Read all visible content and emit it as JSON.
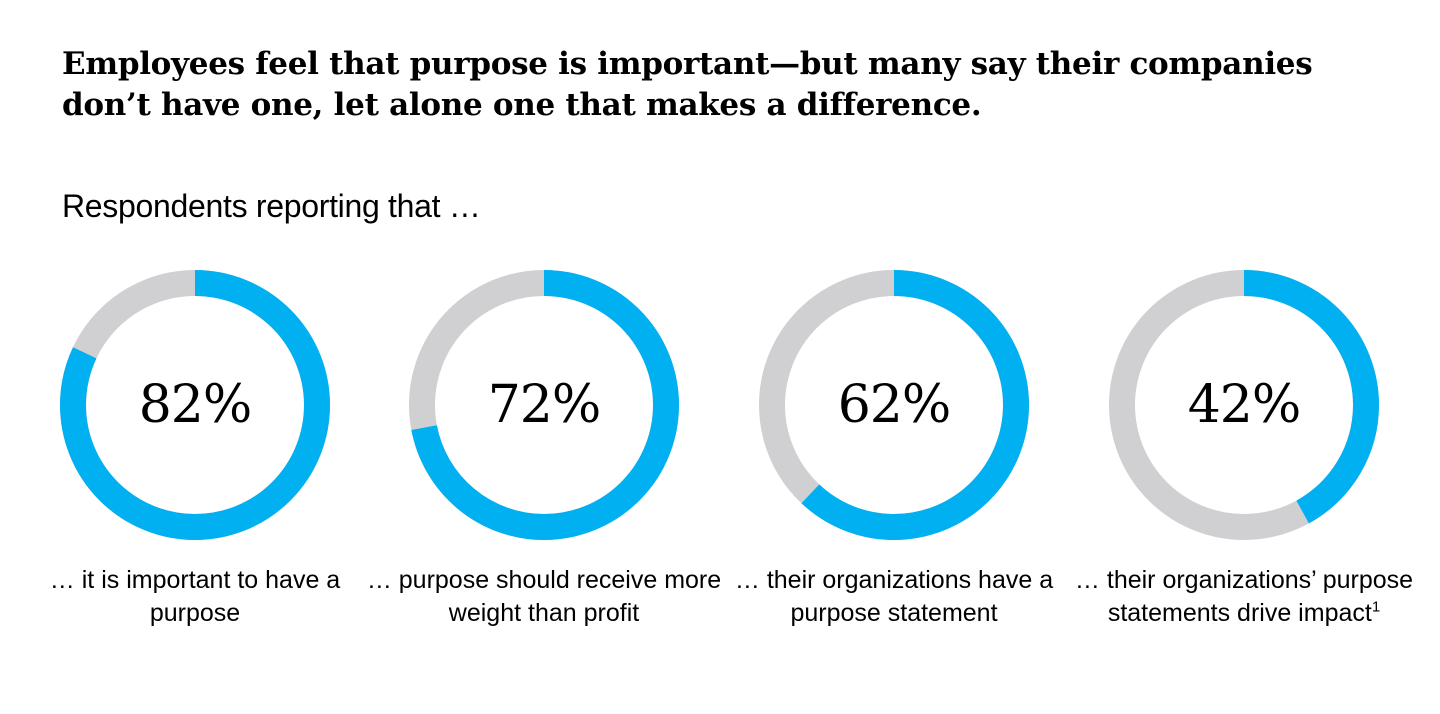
{
  "title": "Employees feel that purpose is important—but many say their companies don’t have one, let alone one that makes a difference.",
  "subtitle": "Respondents reporting that …",
  "colors": {
    "value": "#00b0f0",
    "remainder": "#d0d0d2"
  },
  "chart_data": {
    "type": "pie",
    "subtype": "donut",
    "title": "Employees feel that purpose is important—but many say their companies don’t have one, let alone one that makes a difference.",
    "subtitle": "Respondents reporting that …",
    "unit": "%",
    "series": [
      {
        "value": 82,
        "label": "82%",
        "caption": "… it is important to have a purpose",
        "footnote": ""
      },
      {
        "value": 72,
        "label": "72%",
        "caption": "… purpose should receive more weight than profit",
        "footnote": ""
      },
      {
        "value": 62,
        "label": "62%",
        "caption": "… their organizations have a purpose statement",
        "footnote": ""
      },
      {
        "value": 42,
        "label": "42%",
        "caption": "… their organizations’ purpose statements drive impact",
        "footnote": "1"
      }
    ]
  }
}
